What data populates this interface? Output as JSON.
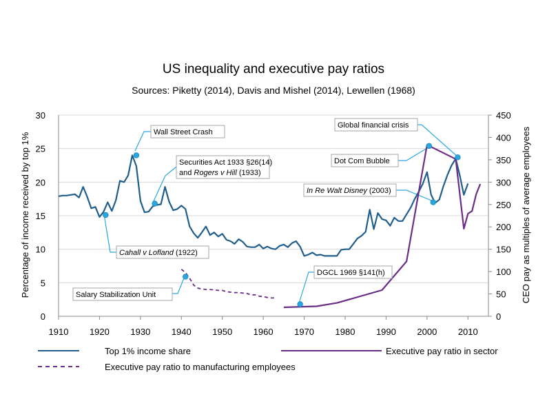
{
  "chart_data": {
    "type": "line",
    "title": "US inequality and executive pay ratios",
    "subtitle": "Sources: Piketty (2014), Davis and Mishel (2014), Lewellen (1968)",
    "xlabel": "",
    "ylabel": "Percentage of income received by top 1%",
    "y2label": "CEO pay as multiples of average employees",
    "xlim": [
      1910,
      2015
    ],
    "ylim": [
      0,
      30
    ],
    "y2lim": [
      0,
      450
    ],
    "x_ticks": [
      "1910",
      "1920",
      "1930",
      "1940",
      "1950",
      "1960",
      "1970",
      "1980",
      "1990",
      "2000",
      "2010"
    ],
    "y_ticks": [
      "0",
      "5",
      "10",
      "15",
      "20",
      "25",
      "30"
    ],
    "y2_ticks": [
      "0",
      "50",
      "100",
      "150",
      "200",
      "250",
      "300",
      "350",
      "400",
      "450"
    ],
    "colors": {
      "top1": "#1f5e8c",
      "exec_sector": "#6a2c86",
      "exec_manuf": "#6a2c86",
      "marker": "#29a8e0",
      "leader": "#29a8e0"
    },
    "series": [
      {
        "name": "Top 1% income share",
        "axis": "left",
        "style": "solid",
        "x": [
          1910,
          1911,
          1912,
          1913,
          1914,
          1915,
          1916,
          1917,
          1918,
          1919,
          1920,
          1921,
          1922,
          1923,
          1924,
          1925,
          1926,
          1927,
          1928,
          1929,
          1930,
          1931,
          1932,
          1933,
          1934,
          1935,
          1936,
          1937,
          1938,
          1939,
          1940,
          1941,
          1942,
          1943,
          1944,
          1945,
          1946,
          1947,
          1948,
          1949,
          1950,
          1951,
          1952,
          1953,
          1954,
          1955,
          1956,
          1957,
          1958,
          1959,
          1960,
          1961,
          1962,
          1963,
          1964,
          1965,
          1966,
          1967,
          1968,
          1969,
          1970,
          1971,
          1972,
          1973,
          1974,
          1975,
          1976,
          1977,
          1978,
          1979,
          1980,
          1981,
          1982,
          1983,
          1984,
          1985,
          1986,
          1987,
          1988,
          1989,
          1990,
          1991,
          1992,
          1993,
          1994,
          1995,
          1996,
          1997,
          1998,
          1999,
          2000,
          2001,
          2002,
          2003,
          2004,
          2005,
          2006,
          2007,
          2008,
          2009,
          2010
        ],
        "values": [
          17.9,
          18.0,
          18.0,
          18.1,
          18.2,
          17.7,
          19.3,
          17.8,
          16.1,
          16.3,
          14.8,
          15.6,
          17.0,
          15.7,
          17.3,
          20.2,
          20.0,
          21.0,
          24.0,
          22.4,
          17.2,
          15.5,
          15.6,
          16.4,
          16.6,
          16.7,
          19.3,
          17.1,
          15.8,
          16.0,
          16.5,
          16.0,
          13.4,
          12.4,
          11.7,
          12.5,
          13.4,
          12.1,
          12.5,
          11.9,
          12.3,
          11.4,
          11.2,
          10.8,
          11.5,
          11.1,
          10.4,
          10.3,
          10.3,
          10.7,
          10.1,
          10.4,
          10.1,
          10.0,
          10.5,
          10.7,
          10.3,
          10.9,
          11.2,
          10.4,
          9.0,
          9.2,
          9.5,
          9.1,
          9.2,
          9.0,
          9.0,
          9.0,
          9.0,
          9.9,
          10.0,
          10.0,
          10.8,
          11.6,
          12.0,
          12.6,
          15.9,
          13.0,
          15.4,
          14.5,
          14.3,
          13.5,
          14.7,
          14.2,
          14.2,
          15.2,
          16.2,
          17.5,
          18.6,
          19.8,
          21.5,
          18.1,
          16.9,
          17.4,
          19.4,
          21.1,
          22.5,
          23.5,
          21.0,
          18.1,
          19.8
        ]
      },
      {
        "name": "Executive pay ratio in sector",
        "axis": "right",
        "style": "solid",
        "x": [
          1965,
          1973,
          1978,
          1989,
          1995,
          2000,
          2007,
          2009,
          2010,
          2011,
          2012,
          2013
        ],
        "values": [
          20,
          22.3,
          29.9,
          58.5,
          122.6,
          383.4,
          351.7,
          195.8,
          229.5,
          235.4,
          272.9,
          295.9
        ]
      },
      {
        "name": "Executive pay ratio to manufacturing employees",
        "axis": "right",
        "style": "dashed",
        "x": [
          1940,
          1941,
          1942,
          1943,
          1944,
          1945,
          1946,
          1947,
          1948,
          1949,
          1950,
          1951,
          1952,
          1953,
          1954,
          1955,
          1956,
          1957,
          1958,
          1959,
          1960,
          1961,
          1962,
          1963
        ],
        "values": [
          105,
          98,
          85,
          70,
          63,
          61,
          60,
          60,
          59,
          58,
          58,
          55,
          54,
          53,
          53,
          52,
          51,
          48,
          48,
          45,
          44,
          42,
          41,
          41
        ]
      }
    ],
    "markers": [
      {
        "x": 1929,
        "y": 24.0,
        "axis": "left"
      },
      {
        "x": 1933.5,
        "y": 16.8,
        "axis": "left"
      },
      {
        "x": 1921.5,
        "y": 15.1,
        "axis": "left"
      },
      {
        "x": 1941,
        "y": 5.9,
        "axis": "left"
      },
      {
        "x": 1969,
        "y": 1.8,
        "axis": "left"
      },
      {
        "x": 2000.5,
        "y": 25.4,
        "axis": "left"
      },
      {
        "x": 2001.5,
        "y": 17.0,
        "axis": "left"
      },
      {
        "x": 2007.5,
        "y": 23.7,
        "axis": "left"
      }
    ],
    "annotations": [
      {
        "parts": [
          {
            "t": "Wall Street Crash",
            "i": false
          }
        ]
      },
      {
        "parts": [
          {
            "t": "Securities Act 1933 §26(14)",
            "i": false
          }
        ],
        "parts2": [
          {
            "t": "and ",
            "i": false
          },
          {
            "t": "Rogers v Hill",
            "i": true
          },
          {
            "t": " (1933)",
            "i": false
          }
        ]
      },
      {
        "parts": [
          {
            "t": "Cahall v Lofland",
            "i": true
          },
          {
            "t": " (1922)",
            "i": false
          }
        ]
      },
      {
        "parts": [
          {
            "t": "Salary Stabilization Unit",
            "i": false
          }
        ]
      },
      {
        "parts": [
          {
            "t": "DGCL 1969 §141(h)",
            "i": false
          }
        ]
      },
      {
        "parts": [
          {
            "t": "Global financial crisis",
            "i": false
          }
        ]
      },
      {
        "parts": [
          {
            "t": "Dot Com Bubble",
            "i": false
          }
        ]
      },
      {
        "parts": [
          {
            "t": "In Re Walt Disney",
            "i": true
          },
          {
            "t": " (2003)",
            "i": false
          }
        ]
      }
    ],
    "legend": [
      {
        "label": "Top 1% income share",
        "style": "solid",
        "color": "#1f5e8c"
      },
      {
        "label": "Executive pay ratio in sector",
        "style": "solid",
        "color": "#6a2c86"
      },
      {
        "label": "Executive pay ratio to manufacturing employees",
        "style": "dashed",
        "color": "#6a2c86"
      }
    ]
  }
}
